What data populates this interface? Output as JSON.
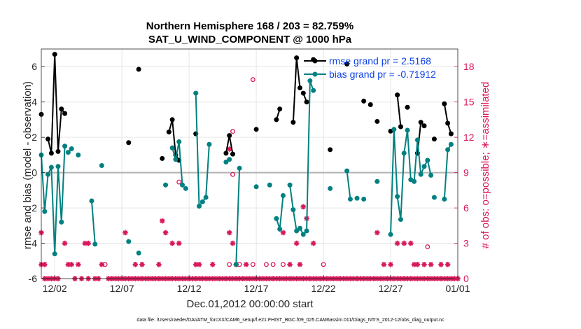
{
  "chart_data": {
    "type": "line",
    "title": [
      "Northern Hemisphere 168 / 203 = 82.759%",
      "SAT_U_WIND_COMPONENT @ 1000 hPa"
    ],
    "xlabel": "Dec.01,2012 00:00:00 start",
    "ylabel": "rmse and bias (model - observation)",
    "ylabel_right": "# of obs: o=possible; ∗=assimilated",
    "xlim": [
      0,
      31
    ],
    "ylim": [
      -6,
      7
    ],
    "ylim_right": [
      0,
      19.5
    ],
    "x_ticks": [
      1,
      6,
      11,
      16,
      21,
      26,
      31
    ],
    "x_tick_labels": [
      "12/02",
      "12/07",
      "12/12",
      "12/17",
      "12/22",
      "12/27",
      "01/01"
    ],
    "y_ticks": [
      -6,
      -4,
      -2,
      0,
      2,
      4,
      6
    ],
    "y_tick_labels": [
      "-6",
      "-4",
      "-2",
      "0",
      "2",
      "4",
      "6"
    ],
    "y_ticks_right": [
      0,
      3,
      6,
      9,
      12,
      15,
      18
    ],
    "y_tick_labels_right": [
      "0",
      "3",
      "6",
      "9",
      "12",
      "15",
      "18"
    ],
    "grid": true,
    "legend_position": "top-right",
    "colors": {
      "rmse": "#000000",
      "bias": "#008080",
      "obs": "#d8195c",
      "zero_line": "#b3b3b3",
      "legend_text": "#0b3fe8",
      "axis": "#262626",
      "grid": "#e6e6e6"
    },
    "series": [
      {
        "name": "rmse grand pr = 2.5168",
        "axis": "left",
        "segments": [
          [
            [
              0.0,
              3.3
            ]
          ],
          [
            [
              0.5,
              1.9
            ],
            [
              0.75,
              1.1
            ],
            [
              1.0,
              6.7
            ],
            [
              1.25,
              1.2
            ],
            [
              1.5,
              3.6
            ],
            [
              1.75,
              3.35
            ]
          ],
          [
            [
              6.5,
              1.7
            ]
          ],
          [
            [
              7.25,
              5.85
            ]
          ],
          [
            [
              9.0,
              0.8
            ]
          ],
          [
            [
              9.5,
              2.3
            ],
            [
              9.75,
              3.0
            ],
            [
              10.0,
              1.0
            ],
            [
              10.25,
              0.7
            ]
          ],
          [
            [
              11.5,
              2.2
            ]
          ],
          [
            [
              13.75,
              1.1
            ],
            [
              14.0,
              2.1
            ],
            [
              14.25,
              1.05
            ]
          ],
          [
            [
              16.0,
              2.45
            ]
          ],
          [
            [
              17.5,
              3.0
            ],
            [
              17.75,
              3.6
            ]
          ],
          [
            [
              18.75,
              2.85
            ],
            [
              19.0,
              6.5
            ],
            [
              19.25,
              4.8
            ]
          ],
          [
            [
              19.5,
              4.5
            ],
            [
              19.75,
              4.0
            ]
          ],
          [
            [
              20.25,
              6.4
            ]
          ],
          [
            [
              21.5,
              1.3
            ]
          ],
          [
            [
              22.75,
              6.15
            ]
          ],
          [
            [
              24.0,
              4.05
            ]
          ],
          [
            [
              24.5,
              3.85
            ]
          ],
          [
            [
              25.0,
              2.9
            ]
          ],
          [
            [
              26.0,
              2.35
            ]
          ],
          [
            [
              26.5,
              4.4
            ],
            [
              26.75,
              2.6
            ]
          ],
          [
            [
              27.25,
              3.7
            ]
          ],
          [
            [
              28.0,
              1.1
            ],
            [
              28.25,
              2.85
            ],
            [
              28.5,
              2.65
            ]
          ],
          [
            [
              29.25,
              1.9
            ]
          ],
          [
            [
              30.0,
              3.9
            ],
            [
              30.25,
              2.8
            ],
            [
              30.5,
              2.2
            ]
          ]
        ]
      },
      {
        "name": "bias grand pr = -0.71912",
        "axis": "left",
        "segments": [
          [
            [
              0.0,
              1.0
            ],
            [
              0.25,
              -2.2
            ],
            [
              0.5,
              -0.1
            ],
            [
              0.75,
              0.3
            ],
            [
              1.0,
              -4.6
            ],
            [
              1.25,
              0.35
            ],
            [
              1.5,
              -2.8
            ],
            [
              1.75,
              1.5
            ]
          ],
          [
            [
              2.0,
              1.15
            ],
            [
              2.25,
              1.35
            ]
          ],
          [
            [
              2.75,
              1.0
            ]
          ],
          [
            [
              3.75,
              -1.6
            ],
            [
              4.0,
              -4.05
            ]
          ],
          [
            [
              4.5,
              0.4
            ]
          ],
          [
            [
              6.5,
              -3.9
            ]
          ],
          [
            [
              7.25,
              -4.55
            ]
          ],
          [
            [
              9.25,
              -0.7
            ]
          ],
          [
            [
              9.75,
              1.4
            ],
            [
              10.0,
              0.75
            ],
            [
              10.25,
              1.75
            ],
            [
              10.5,
              -0.7
            ]
          ],
          [
            [
              10.75,
              -0.9
            ]
          ],
          [
            [
              11.5,
              4.5
            ],
            [
              11.75,
              -1.9
            ],
            [
              12.0,
              -1.65
            ],
            [
              12.25,
              -1.4
            ],
            [
              12.5,
              1.6
            ]
          ],
          [
            [
              13.75,
              0.6
            ],
            [
              14.0,
              0.75
            ]
          ],
          [
            [
              14.5,
              -5.2
            ],
            [
              14.75,
              0.25
            ]
          ],
          [
            [
              16.0,
              -0.8
            ]
          ],
          [
            [
              17.0,
              -0.7
            ]
          ],
          [
            [
              17.5,
              -2.6
            ],
            [
              17.75,
              -3.2
            ],
            [
              18.0,
              -1.3
            ]
          ],
          [
            [
              18.5,
              -0.7
            ],
            [
              18.75,
              -2.1
            ],
            [
              19.0,
              -3.3
            ],
            [
              19.25,
              -3.15
            ],
            [
              19.5,
              -3.5
            ],
            [
              19.75,
              -3.3
            ],
            [
              20.0,
              5.2
            ],
            [
              20.25,
              4.65
            ]
          ],
          [
            [
              21.5,
              -0.9
            ]
          ],
          [
            [
              22.75,
              0.1
            ],
            [
              23.0,
              -1.5
            ]
          ],
          [
            [
              23.5,
              -1.45
            ]
          ],
          [
            [
              24.0,
              -1.5
            ]
          ],
          [
            [
              25.0,
              -0.5
            ]
          ],
          [
            [
              26.0,
              -3.5
            ],
            [
              26.25,
              2.45
            ],
            [
              26.5,
              -1.35
            ],
            [
              26.75,
              -2.65
            ],
            [
              27.0,
              1.1
            ],
            [
              27.25,
              2.4
            ],
            [
              27.5,
              -0.4
            ],
            [
              27.75,
              -0.5
            ],
            [
              28.0,
              1.85
            ],
            [
              28.25,
              -0.1
            ],
            [
              28.5,
              0.35
            ],
            [
              28.75,
              0.7
            ],
            [
              29.0,
              -0.15
            ]
          ],
          [
            [
              29.25,
              -1.4
            ]
          ],
          [
            [
              30.0,
              -1.5
            ],
            [
              30.25,
              1.3
            ],
            [
              30.5,
              1.6
            ]
          ]
        ]
      },
      {
        "name": "obs possible",
        "axis": "right",
        "marker": "o",
        "points": [
          [
            14.25,
            12.5
          ],
          [
            15.75,
            16.9
          ],
          [
            17.25,
            1.2
          ],
          [
            18.0,
            1.2
          ],
          [
            14.0,
            1.2
          ],
          [
            14.75,
            1.2
          ],
          [
            15.75,
            1.2
          ],
          [
            16.75,
            1.2
          ],
          [
            21.0,
            1.2
          ],
          [
            10.25,
            8.2
          ],
          [
            14.25,
            8.85
          ],
          [
            28.75,
            2.7
          ],
          [
            4.75,
            1.2
          ]
        ]
      },
      {
        "name": "obs assimilated",
        "axis": "right",
        "marker": "*",
        "points": [
          [
            0.0,
            3.9
          ],
          [
            0.0,
            1.2
          ],
          [
            0.25,
            1.2
          ],
          [
            1.75,
            3.0
          ],
          [
            2.0,
            1.2
          ],
          [
            2.25,
            1.2
          ],
          [
            2.75,
            1.2
          ],
          [
            3.25,
            3.0
          ],
          [
            3.5,
            3.0
          ],
          [
            4.5,
            1.2
          ],
          [
            6.25,
            3.9
          ],
          [
            7.0,
            1.2
          ],
          [
            7.5,
            1.2
          ],
          [
            8.75,
            1.2
          ],
          [
            9.0,
            4.9
          ],
          [
            9.25,
            3.9
          ],
          [
            9.75,
            3.0
          ],
          [
            10.25,
            3.0
          ],
          [
            11.5,
            1.2
          ],
          [
            11.75,
            1.2
          ],
          [
            12.75,
            1.2
          ],
          [
            14.0,
            11.0
          ],
          [
            14.0,
            3.9
          ],
          [
            14.25,
            3.0
          ],
          [
            14.5,
            1.2
          ],
          [
            15.25,
            1.2
          ],
          [
            18.0,
            3.9
          ],
          [
            18.5,
            1.2
          ],
          [
            19.0,
            3.0
          ],
          [
            19.25,
            1.2
          ],
          [
            19.5,
            6.1
          ],
          [
            19.75,
            5.1
          ],
          [
            20.25,
            3.0
          ],
          [
            25.0,
            3.9
          ],
          [
            25.5,
            1.2
          ],
          [
            26.0,
            1.2
          ],
          [
            26.5,
            3.0
          ],
          [
            27.0,
            3.0
          ],
          [
            27.5,
            3.0
          ],
          [
            27.75,
            1.2
          ],
          [
            28.0,
            1.2
          ],
          [
            28.5,
            1.2
          ],
          [
            29.0,
            1.2
          ],
          [
            29.75,
            1.2
          ],
          [
            30.25,
            1.2
          ]
        ],
        "zero_days": [
          0.25,
          0.5,
          0.75,
          1.0,
          1.25,
          2.5,
          3.0,
          3.5,
          4.0,
          4.25,
          5.0,
          5.25,
          5.5,
          5.75,
          6.0,
          6.25,
          6.5,
          6.75,
          7.0,
          7.25,
          7.5,
          7.75,
          8.0,
          8.25,
          8.5,
          8.75,
          9.0,
          9.25,
          9.5,
          9.75,
          10.0,
          10.25,
          10.5,
          10.75,
          11.0,
          11.25,
          11.5,
          11.75,
          12.0,
          12.25,
          12.5,
          12.75,
          13.0,
          13.25,
          13.5,
          13.75,
          14.0,
          14.25,
          14.5,
          14.75,
          15.0,
          15.25,
          15.5,
          15.75,
          16.0,
          16.25,
          16.5,
          16.75,
          17.0,
          17.25,
          17.5,
          17.75,
          18.0,
          18.25,
          18.5,
          18.75,
          19.0,
          19.25,
          19.5,
          19.75,
          20.0,
          20.25,
          20.5,
          20.75,
          21.0,
          21.25,
          21.5,
          21.75,
          22.0,
          22.25,
          22.5,
          22.75,
          23.0,
          23.25,
          23.5,
          23.75,
          24.0,
          24.25,
          24.5,
          24.75,
          25.0,
          25.25,
          25.5,
          25.75,
          26.0,
          26.25,
          26.5,
          26.75,
          27.0,
          27.25,
          27.5,
          27.75,
          28.0,
          28.25,
          28.5,
          28.75,
          29.0,
          29.25,
          29.5,
          29.75,
          30.0,
          30.25,
          30.5,
          30.75,
          31.0
        ]
      }
    ],
    "footnote": "data file: /Users/raeder/DAI/ATM_forcXX/CAM6_setup/f.e21.FHIST_BGC.f09_025.CAM6assim.011/Diags_NTrS_2012-12/obs_diag_output.nc"
  }
}
